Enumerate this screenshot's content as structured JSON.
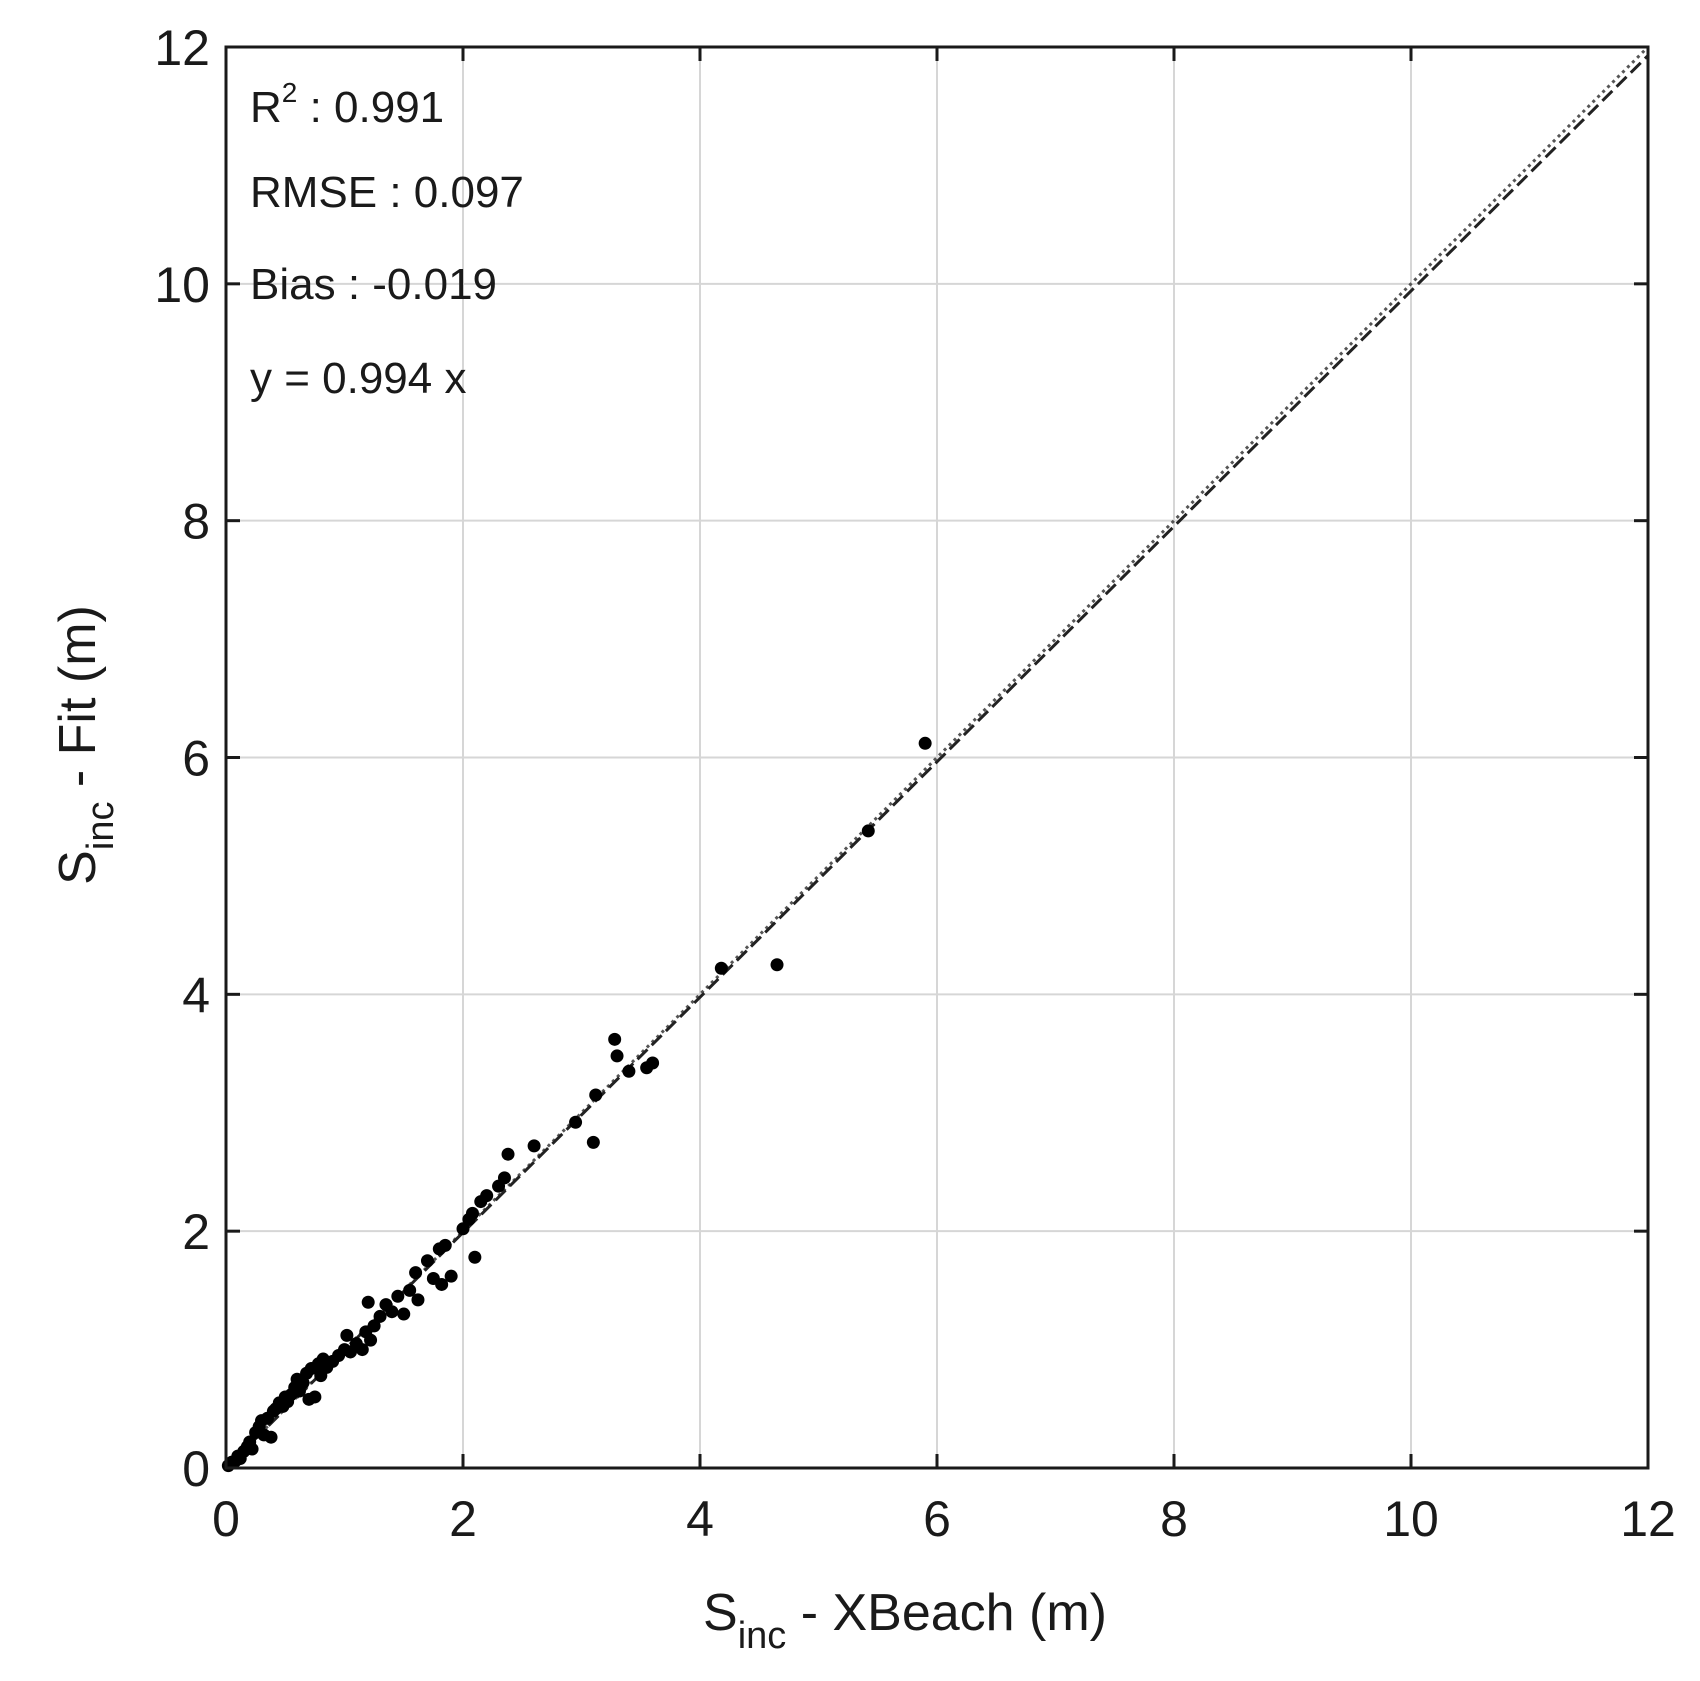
{
  "chart_data": {
    "type": "scatter",
    "title": "",
    "xlabel": {
      "base": "S",
      "sub": "inc",
      "rest": " - XBeach (m)"
    },
    "ylabel": {
      "base": "S",
      "sub": "inc",
      "rest": " - Fit (m)"
    },
    "xlim": [
      0,
      12
    ],
    "ylim": [
      0,
      12
    ],
    "xticks": [
      0,
      2,
      4,
      6,
      8,
      10,
      12
    ],
    "yticks": [
      0,
      2,
      4,
      6,
      8,
      10,
      12
    ],
    "xtick_labels": [
      "0",
      "2",
      "4",
      "6",
      "8",
      "10",
      "12"
    ],
    "ytick_labels": [
      "0",
      "2",
      "4",
      "6",
      "8",
      "10",
      "12"
    ],
    "grid": true,
    "annotations": {
      "r2": {
        "label": "R",
        "sup": "2",
        "text": " : 0.991"
      },
      "rmse": "RMSE : 0.097",
      "bias": "Bias : -0.019",
      "fit": "y = 0.994 x"
    },
    "lines": [
      {
        "style": "dotted",
        "color": "#555555",
        "slope": 1.0,
        "x": [
          0,
          12
        ]
      },
      {
        "style": "dashed",
        "color": "#222222",
        "slope": 0.994,
        "x": [
          0,
          12
        ]
      }
    ],
    "points": [
      [
        0.02,
        0.02
      ],
      [
        0.05,
        0.05
      ],
      [
        0.08,
        0.06
      ],
      [
        0.1,
        0.1
      ],
      [
        0.12,
        0.08
      ],
      [
        0.15,
        0.14
      ],
      [
        0.18,
        0.18
      ],
      [
        0.2,
        0.22
      ],
      [
        0.22,
        0.16
      ],
      [
        0.25,
        0.3
      ],
      [
        0.28,
        0.35
      ],
      [
        0.3,
        0.4
      ],
      [
        0.32,
        0.28
      ],
      [
        0.35,
        0.42
      ],
      [
        0.38,
        0.26
      ],
      [
        0.4,
        0.48
      ],
      [
        0.42,
        0.5
      ],
      [
        0.45,
        0.55
      ],
      [
        0.48,
        0.52
      ],
      [
        0.5,
        0.6
      ],
      [
        0.52,
        0.56
      ],
      [
        0.55,
        0.62
      ],
      [
        0.58,
        0.68
      ],
      [
        0.6,
        0.75
      ],
      [
        0.62,
        0.65
      ],
      [
        0.65,
        0.72
      ],
      [
        0.68,
        0.8
      ],
      [
        0.7,
        0.58
      ],
      [
        0.72,
        0.84
      ],
      [
        0.75,
        0.6
      ],
      [
        0.78,
        0.88
      ],
      [
        0.8,
        0.78
      ],
      [
        0.82,
        0.92
      ],
      [
        0.85,
        0.85
      ],
      [
        0.9,
        0.9
      ],
      [
        0.95,
        0.95
      ],
      [
        1.0,
        1.0
      ],
      [
        1.02,
        1.12
      ],
      [
        1.05,
        0.98
      ],
      [
        1.1,
        1.05
      ],
      [
        1.15,
        1.0
      ],
      [
        1.18,
        1.15
      ],
      [
        1.2,
        1.4
      ],
      [
        1.22,
        1.08
      ],
      [
        1.25,
        1.2
      ],
      [
        1.3,
        1.28
      ],
      [
        1.35,
        1.38
      ],
      [
        1.4,
        1.32
      ],
      [
        1.45,
        1.45
      ],
      [
        1.5,
        1.3
      ],
      [
        1.55,
        1.5
      ],
      [
        1.6,
        1.65
      ],
      [
        1.62,
        1.42
      ],
      [
        1.7,
        1.75
      ],
      [
        1.75,
        1.6
      ],
      [
        1.8,
        1.85
      ],
      [
        1.82,
        1.55
      ],
      [
        1.85,
        1.88
      ],
      [
        1.9,
        1.62
      ],
      [
        2.0,
        2.02
      ],
      [
        2.05,
        2.1
      ],
      [
        2.08,
        2.15
      ],
      [
        2.1,
        1.78
      ],
      [
        2.15,
        2.25
      ],
      [
        2.2,
        2.3
      ],
      [
        2.3,
        2.38
      ],
      [
        2.35,
        2.45
      ],
      [
        2.38,
        2.65
      ],
      [
        2.6,
        2.72
      ],
      [
        2.95,
        2.92
      ],
      [
        3.1,
        2.75
      ],
      [
        3.12,
        3.15
      ],
      [
        3.28,
        3.62
      ],
      [
        3.3,
        3.48
      ],
      [
        3.4,
        3.35
      ],
      [
        3.55,
        3.38
      ],
      [
        3.6,
        3.42
      ],
      [
        4.18,
        4.22
      ],
      [
        4.65,
        4.25
      ],
      [
        5.42,
        5.38
      ],
      [
        5.9,
        6.12
      ]
    ]
  }
}
